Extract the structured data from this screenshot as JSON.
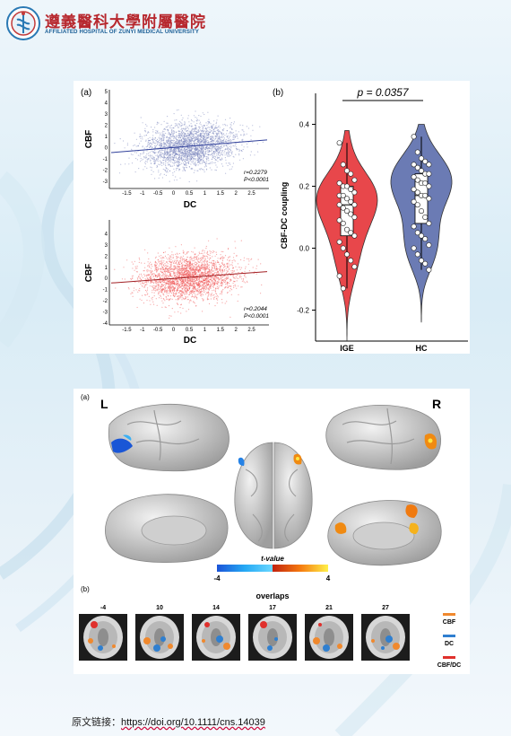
{
  "header": {
    "hospital_cn": "遵義醫科大學附屬醫院",
    "hospital_en": "AFFILIATED HOSPITAL OF ZUNYI MEDICAL UNIVERSITY"
  },
  "figure1": {
    "panel_a_label": "(a)",
    "panel_b_label": "(b)",
    "scatter_top": {
      "ylabel": "CBF",
      "xlabel": "DC",
      "r": "r=0.2279",
      "p": "P<0.0001",
      "color": "#7b86bd"
    },
    "scatter_bottom": {
      "ylabel": "CBF",
      "xlabel": "DC",
      "r": "r=0.2044",
      "p": "P<0.0001",
      "color": "#f0595a"
    },
    "violin": {
      "p_label": "p = 0.0357",
      "ylabel": "CBF-DC coupling",
      "groups": [
        "IGE",
        "HC"
      ],
      "ige_color": "#e8474b",
      "hc_color": "#6b7bb4"
    }
  },
  "figure2": {
    "panel_a_label": "(a)",
    "panel_b_label": "(b)",
    "left_label": "L",
    "right_label": "R",
    "colorbar_title": "t-value",
    "colorbar_min": "-4",
    "colorbar_max": "4",
    "overlaps_title": "overlaps",
    "slices": [
      "-4",
      "10",
      "14",
      "17",
      "21",
      "27"
    ],
    "legend": [
      {
        "label": "CBF",
        "color": "#f0892e"
      },
      {
        "label": "DC",
        "color": "#2f7fd0"
      },
      {
        "label": "CBF/DC",
        "color": "#e0302c"
      }
    ]
  },
  "footer": {
    "label": "原文链接：",
    "url": "https://doi.org/10.1111/cns.14039"
  },
  "chart_data": [
    {
      "type": "scatter",
      "xlabel": "DC",
      "ylabel": "CBF",
      "xlim": [
        -2,
        3
      ],
      "ylim": [
        -3.5,
        5
      ],
      "x_ticks": [
        "-1.5",
        "-1",
        "-0.5",
        "0",
        "0.5",
        "1",
        "1.5",
        "2",
        "2.5"
      ],
      "y_ticks": [
        "-3",
        "-2",
        "-1",
        "0",
        "1",
        "2",
        "3",
        "4",
        "5"
      ],
      "annotation": [
        "r=0.2279",
        "P<0.0001"
      ],
      "trend": {
        "slope": 0.2279,
        "intercept": 0
      }
    },
    {
      "type": "scatter",
      "xlabel": "DC",
      "ylabel": "CBF",
      "xlim": [
        -2,
        3
      ],
      "ylim": [
        -4,
        5
      ],
      "x_ticks": [
        "-1.5",
        "-1",
        "-0.5",
        "0",
        "0.5",
        "1",
        "1.5",
        "2",
        "2.5"
      ],
      "y_ticks": [
        "-4",
        "-3",
        "-2",
        "-1",
        "0",
        "1",
        "2",
        "3",
        "4"
      ],
      "annotation": [
        "r=0.2044",
        "P<0.0001"
      ],
      "trend": {
        "slope": 0.2044,
        "intercept": 0
      }
    },
    {
      "type": "violin",
      "ylabel": "CBF-DC coupling",
      "categories": [
        "IGE",
        "HC"
      ],
      "ylim": [
        -0.3,
        0.5
      ],
      "y_ticks": [
        "-0.2",
        "0.0",
        "0.2",
        "0.4"
      ],
      "annotation": "p = 0.0357",
      "series": [
        {
          "name": "IGE",
          "median": 0.14,
          "q1": 0.04,
          "q3": 0.2,
          "min": -0.13,
          "max": 0.34,
          "points": [
            0.34,
            0.27,
            0.25,
            0.24,
            0.22,
            0.21,
            0.2,
            0.2,
            0.19,
            0.18,
            0.17,
            0.17,
            0.16,
            0.15,
            0.14,
            0.14,
            0.13,
            0.12,
            0.11,
            0.1,
            0.09,
            0.08,
            0.06,
            0.05,
            0.04,
            0.02,
            0.0,
            -0.02,
            -0.04,
            -0.06,
            -0.09,
            -0.13
          ]
        },
        {
          "name": "HC",
          "median": 0.17,
          "q1": 0.08,
          "q3": 0.24,
          "min": -0.07,
          "max": 0.36,
          "points": [
            0.36,
            0.31,
            0.29,
            0.28,
            0.27,
            0.27,
            0.26,
            0.25,
            0.24,
            0.24,
            0.23,
            0.22,
            0.21,
            0.21,
            0.2,
            0.19,
            0.18,
            0.17,
            0.17,
            0.16,
            0.15,
            0.14,
            0.12,
            0.1,
            0.08,
            0.07,
            0.05,
            0.04,
            0.03,
            0.01,
            0.0,
            -0.02,
            -0.04,
            -0.05,
            -0.07
          ]
        }
      ]
    }
  ]
}
